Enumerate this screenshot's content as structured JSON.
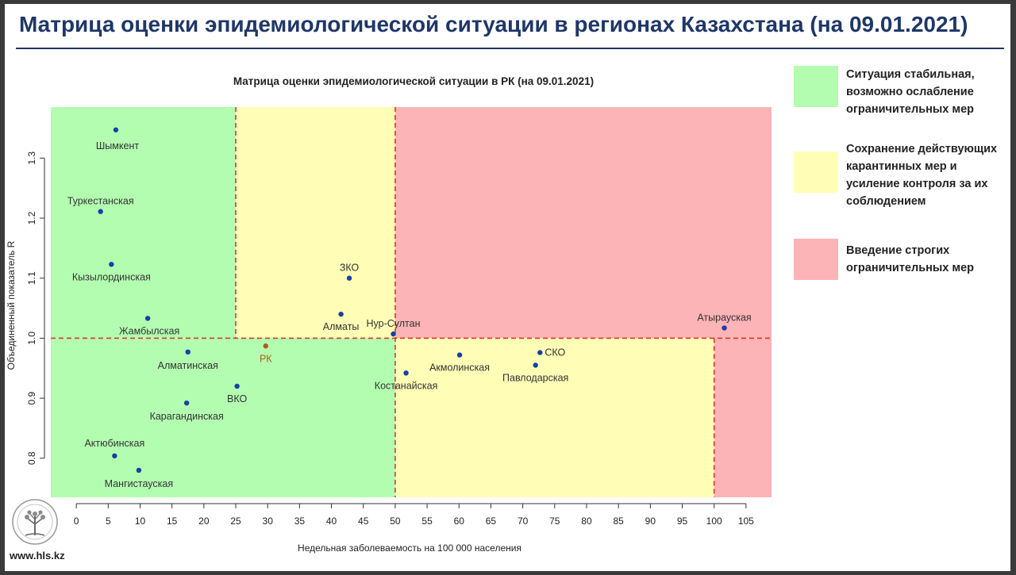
{
  "page": {
    "title": "Матрица оценки эпидемиологической ситуации в регионах Казахстана (на 09.01.2021)",
    "website": "www.hls.kz"
  },
  "legend": [
    {
      "text": "Ситуация стабильная, возможно ослабление ограничительных мер",
      "color": "#b3fdb0"
    },
    {
      "text": "Сохранение действующих карантинных мер и усиление контроля за их соблюдением",
      "color": "#fffdb6"
    },
    {
      "text": "Введение строгих ограничительных мер",
      "color": "#fcb4b6"
    }
  ],
  "chart_data": {
    "type": "scatter",
    "title": "Матрица оценки эпидемиологической ситуации в РК (на 09.01.2021)",
    "xlabel": "Недельная заболеваемость на 100 000 населения",
    "ylabel": "Объединенный показатель R",
    "xlim": [
      -4,
      109
    ],
    "ylim": [
      0.735,
      1.385
    ],
    "xticks": [
      0,
      5,
      10,
      15,
      20,
      25,
      30,
      35,
      40,
      45,
      50,
      55,
      60,
      65,
      70,
      75,
      80,
      85,
      90,
      95,
      100,
      105
    ],
    "yticks": [
      0.8,
      0.9,
      1.0,
      1.1,
      1.2,
      1.3
    ],
    "thresholds": {
      "x": [
        25,
        50,
        100
      ],
      "y": 1.0
    },
    "zone_colors": {
      "green": "#b3fdb0",
      "yellow": "#fffdb6",
      "red": "#fcb4b6",
      "threshold_line": "#d63a2a",
      "point": "#1a3fa8",
      "rk_point": "#b05a1e",
      "rk_label": "#b05a1e"
    },
    "points": [
      {
        "name": "Шымкент",
        "x": 6.2,
        "y": 1.347
      },
      {
        "name": "Туркестанская",
        "x": 3.8,
        "y": 1.211
      },
      {
        "name": "Кызылординская",
        "x": 5.5,
        "y": 1.123
      },
      {
        "name": "Жамбылская",
        "x": 11.2,
        "y": 1.033
      },
      {
        "name": "Алматинская",
        "x": 17.5,
        "y": 0.977
      },
      {
        "name": "Карагандинская",
        "x": 17.3,
        "y": 0.892
      },
      {
        "name": "ВКО",
        "x": 25.2,
        "y": 0.92
      },
      {
        "name": "Актюбинская",
        "x": 6.0,
        "y": 0.804
      },
      {
        "name": "Мангистауская",
        "x": 9.8,
        "y": 0.78
      },
      {
        "name": "РК",
        "x": 29.7,
        "y": 0.987
      },
      {
        "name": "ЗКО",
        "x": 42.8,
        "y": 1.1
      },
      {
        "name": "Алматы",
        "x": 41.5,
        "y": 1.04
      },
      {
        "name": "Нур-Султан",
        "x": 49.7,
        "y": 1.007
      },
      {
        "name": "Костанайская",
        "x": 51.7,
        "y": 0.942
      },
      {
        "name": "Акмолинская",
        "x": 60.1,
        "y": 0.972
      },
      {
        "name": "Павлодарская",
        "x": 72.0,
        "y": 0.955
      },
      {
        "name": "СКО",
        "x": 72.7,
        "y": 0.976
      },
      {
        "name": "Атырауская",
        "x": 101.6,
        "y": 1.017
      }
    ]
  }
}
